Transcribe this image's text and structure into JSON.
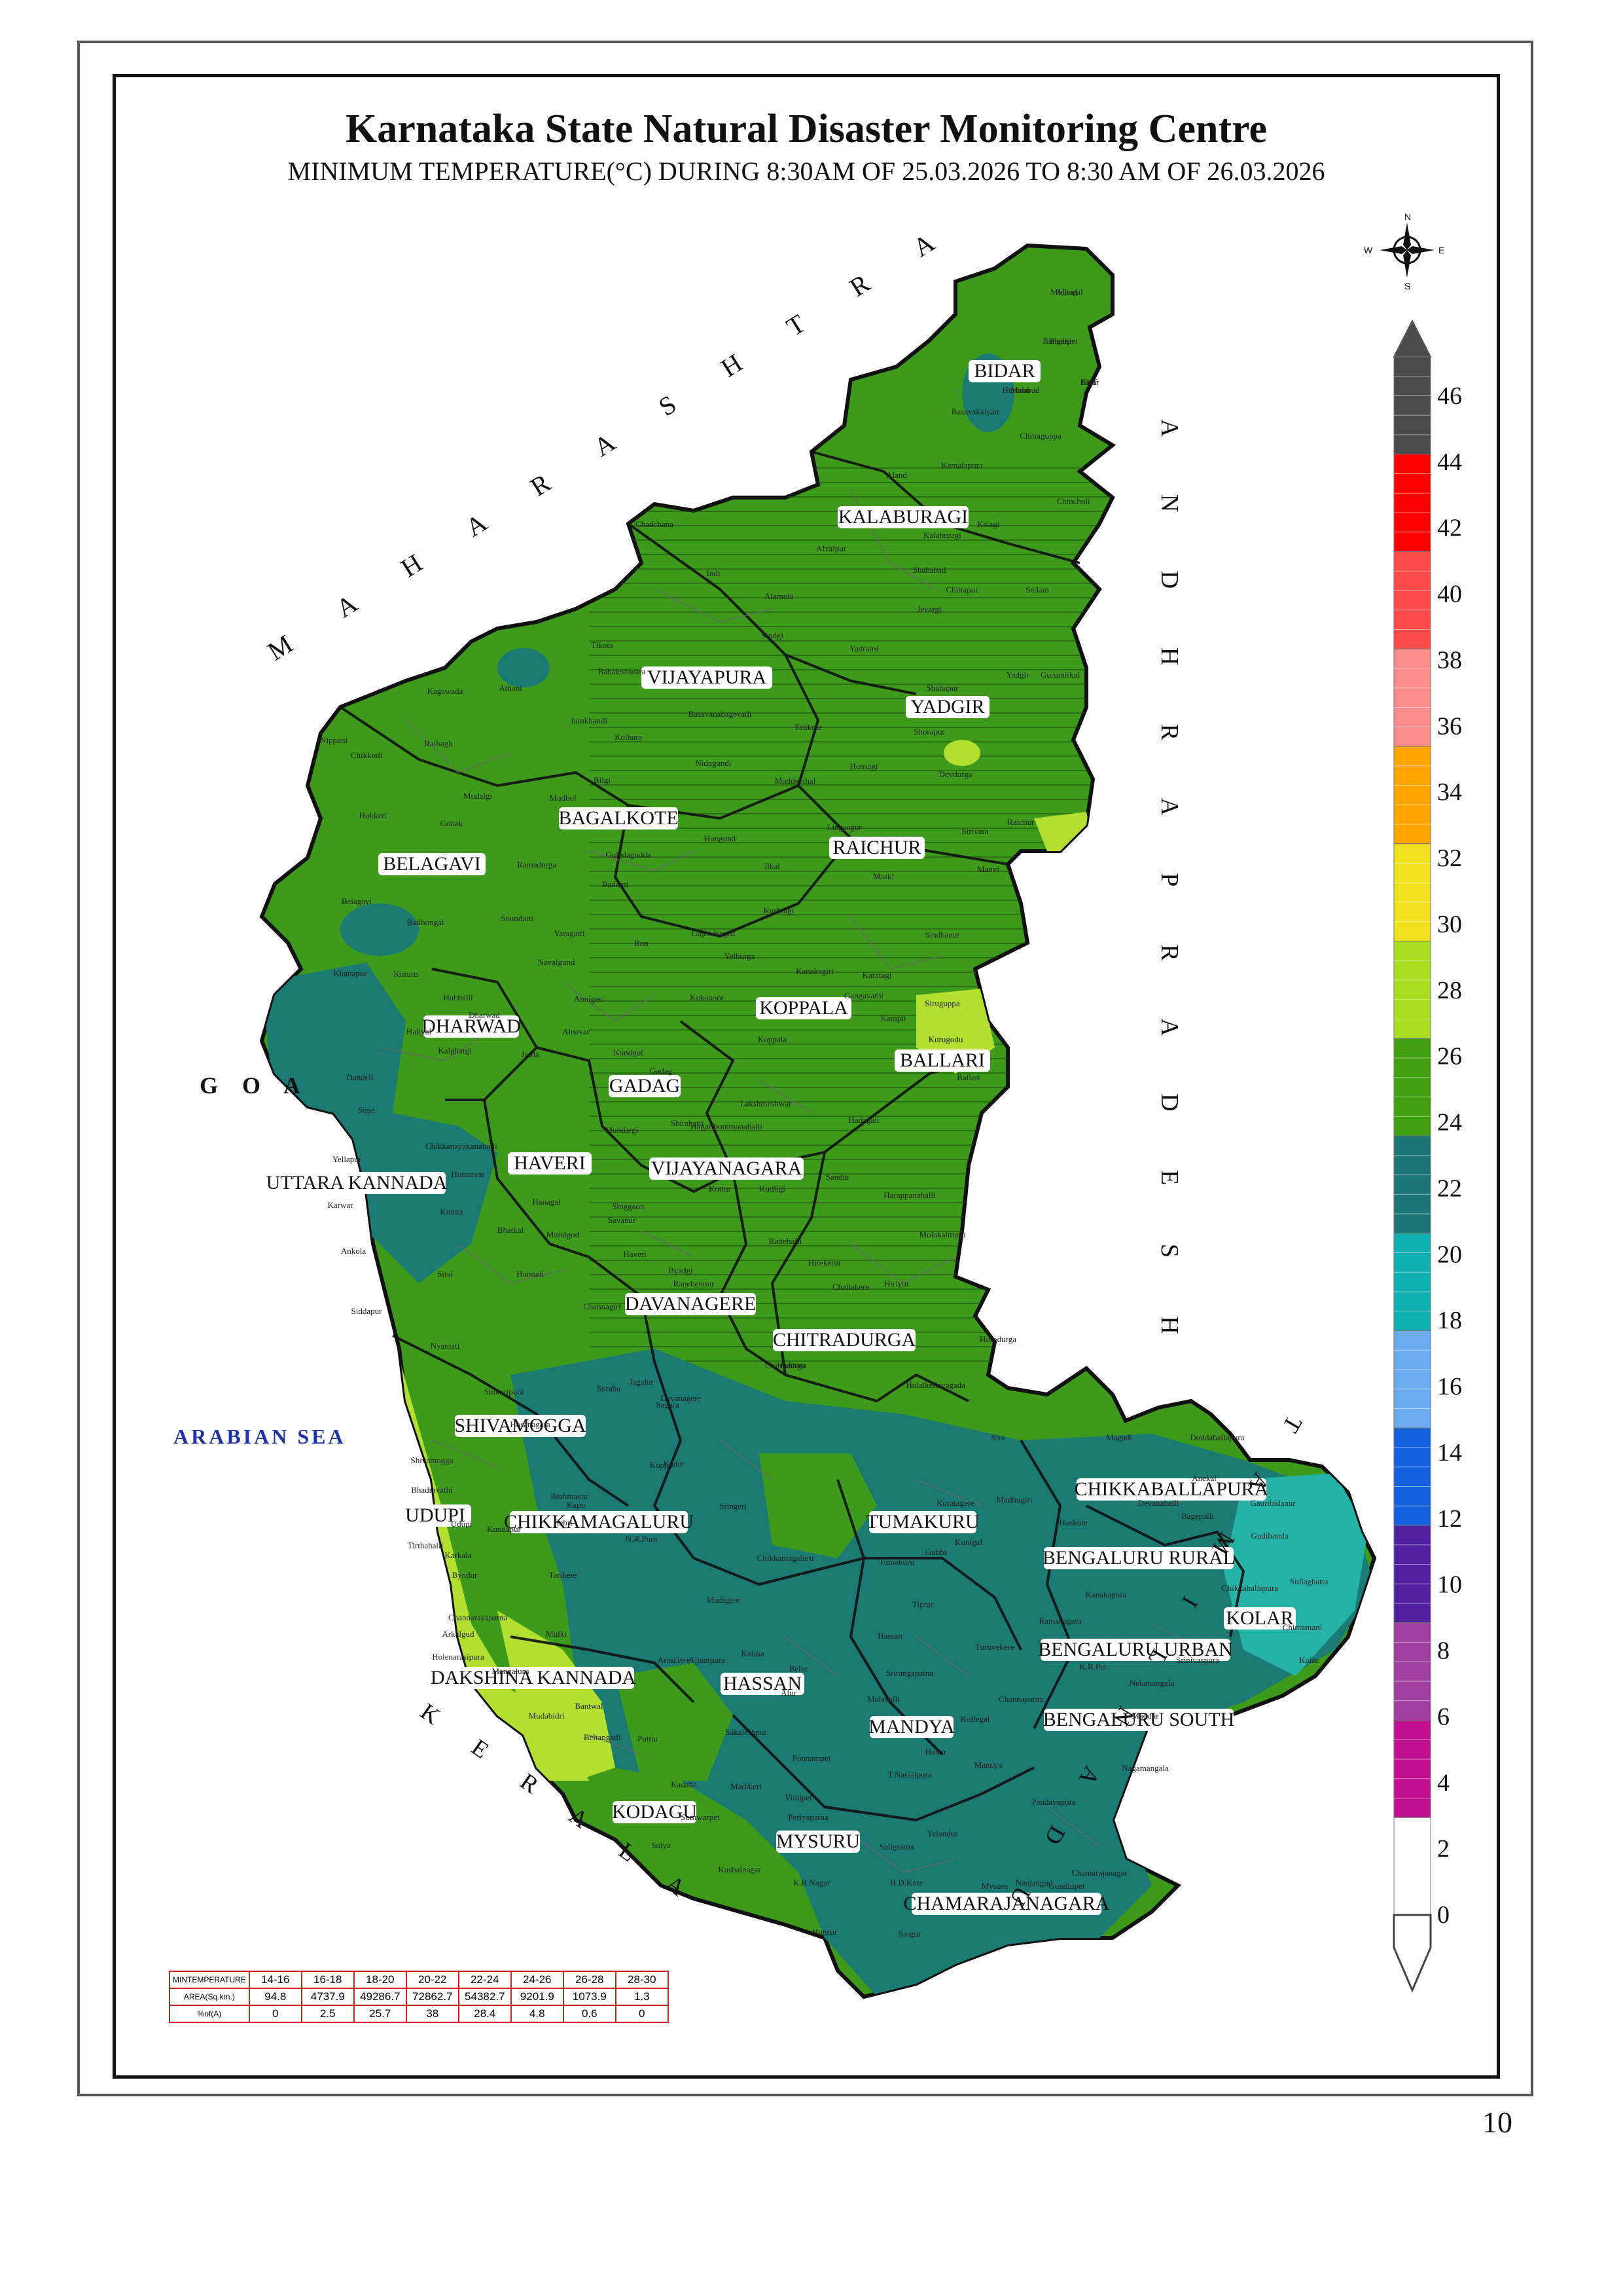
{
  "header": {
    "title": "Karnataka State Natural Disaster Monitoring Centre",
    "subtitle": "MINIMUM TEMPERATURE(°C) DURING 8:30AM OF 25.03.2026 TO 8:30 AM OF 26.03.2026"
  },
  "page_number": "10",
  "compass": {
    "n": "N",
    "s": "S",
    "e": "E",
    "w": "W"
  },
  "neighbour_labels": {
    "maharashtra": "M A H A R A S H T R A",
    "andhra": "A N D H R A   P R A D E S H",
    "tamil": "T A M I L   N A D U",
    "kerala": "K E R A L A",
    "goa": "G O A",
    "sea": "ARABIAN SEA"
  },
  "districts": [
    "BIDAR",
    "KALABURAGI",
    "VIJAYAPURA",
    "YADGIR",
    "BAGALKOTE",
    "RAICHUR",
    "BELAGAVI",
    "KOPPALA",
    "DHARWAD",
    "BALLARI",
    "GADAG",
    "HAVERI",
    "VIJAYANAGARA",
    "UTTARA KANNADA",
    "DAVANAGERE",
    "CHITRADURGA",
    "SHIVAMOGGA",
    "CHIKKABALLAPURA",
    "UDUPI",
    "CHIKKAMAGALURU",
    "TUMAKURU",
    "BENGALURU RURAL",
    "KOLAR",
    "BENGALURU URBAN",
    "DAKSHINA KANNADA",
    "HASSAN",
    "MANDYA",
    "BENGALURU SOUTH",
    "KODAGU",
    "MYSURU",
    "CHAMARAJANAGARA"
  ],
  "taluks": [
    "Aurad",
    "Bhalki",
    "Humnabad",
    "Bidar",
    "Basavakalyan",
    "Chittaguppa",
    "Kamalapura",
    "Aland",
    "Chincholi",
    "Kalaburagi",
    "Kalagi",
    "Afzalpur",
    "Shahabad",
    "Chittapur",
    "Sedam",
    "Jevargi",
    "Indi",
    "Alamela",
    "Sindgi",
    "Yadrami",
    "Chadchana",
    "Tikota",
    "Babaleshwara",
    "Basavanabagevadi",
    "Kolhara",
    "Talikote",
    "Shahapur",
    "Yadgir",
    "Gurumitkal",
    "Shorapur",
    "Hunsagi",
    "Devdurga",
    "Muddebihal",
    "Nidagundi",
    "Jamkhandi",
    "Athani",
    "Kagawada",
    "Raibagh",
    "Nippani",
    "Chikkodi",
    "Mudalgi",
    "Mudhol",
    "Bilgi",
    "Hukkeri",
    "Gokak",
    "Ramadurga",
    "Badami",
    "Guledagudda",
    "Hungund",
    "Ilkal",
    "Lingsugur",
    "Sirivara",
    "Manvi",
    "Maski",
    "Raichur",
    "Kushtagi",
    "Sindhanur",
    "Belagavi",
    "Bailhongal",
    "Soundatti",
    "Yaragatti",
    "Ron",
    "Gajendragad",
    "Yelburga",
    "Kanakagiri",
    "Karatagi",
    "Siruguppa",
    "Kampli",
    "Kurugodu",
    "Ballari",
    "Kukanoor",
    "Koppala",
    "Gangavathi",
    "Khanapur",
    "Kitturu",
    "Navalgund",
    "Annigeri",
    "Hubballi",
    "Dharwad",
    "Alnavar",
    "Kalghatgi",
    "Haliyal",
    "Dandeli",
    "Supa",
    "Joida",
    "Kundgol",
    "Gadag",
    "Mundargi",
    "Shirahatti",
    "Lakshmeshwar",
    "Hagaribommanahalli",
    "Hadagali",
    "Sandur",
    "Kudligi",
    "Kottur",
    "Harappanahalli",
    "Molakalmuru",
    "Hiriyur",
    "Challakere",
    "Chitradurga",
    "Holalkere",
    "Hosadurga",
    "Pavagada",
    "Sira",
    "Madhugiri",
    "Koratagere",
    "Gubbi",
    "Tumakuru",
    "Tiptur",
    "Turuvekere",
    "Kunigal",
    "Chikkanayakanahalli",
    "Yellapur",
    "Karwar",
    "Ankola",
    "Kumta",
    "Sirsi",
    "Siddapur",
    "Honnavar",
    "Bhatkal",
    "Mundgod",
    "Hanagal",
    "Savanur",
    "Shiggaon",
    "Haveri",
    "Byadgi",
    "Ranebennur",
    "Hirekerur",
    "Rattehalli",
    "Harihara",
    "Davanagere",
    "Jagalur",
    "Channagiri",
    "Honnali",
    "Nyamati",
    "Shikaripura",
    "Soraba",
    "Sagara",
    "Hosanagara",
    "Shivamogga",
    "Bhadravathi",
    "Tirthahalli",
    "Byndur",
    "Kundapur",
    "Udupi",
    "Karkala",
    "Hebri",
    "Kapu",
    "Brahmavar",
    "Koppa",
    "Sringeri",
    "N.R.Pura",
    "Tarikere",
    "Kadur",
    "Chikkamagaluru",
    "Mudigere",
    "Kalasa",
    "Ajjampura",
    "Arasikere",
    "Belur",
    "Alur",
    "Sakaleshpur",
    "Hassan",
    "Holenarasipura",
    "Arkalgud",
    "Channarayapatna",
    "Mangaluru",
    "Mulki",
    "Mudabidri",
    "Bantwal",
    "Beltangadi",
    "Puttur",
    "Kadaba",
    "Sulya",
    "Somwarpet",
    "Kushalnagar",
    "Madikeri",
    "Virajpet",
    "Ponnampet",
    "Periyapatna",
    "K.R.Nagar",
    "Hunsur",
    "Saligrama",
    "H.D.Kote",
    "Sargur",
    "Mysuru",
    "Nanjangud",
    "Gundlupet",
    "Chamarajanagar",
    "Yelandur",
    "Hanur",
    "Kollegal",
    "T.Narasipura",
    "Pandavapura",
    "Mandya",
    "Srirangapatna",
    "Malavalli",
    "Maddur",
    "Nagamangala",
    "K.R.Pet",
    "Ramanagara",
    "Kanakapura",
    "Channapatna",
    "Magadi",
    "Nelamangala",
    "Doddaballapura",
    "Devanahalli",
    "Hoskote",
    "Anekal",
    "Bagepalli",
    "Gauribidanur",
    "Gudibanda",
    "Chikkaballapura",
    "Sidlaghatta",
    "Chintamani",
    "Srinivaspura",
    "Kolar",
    "Mulbagal",
    "Bangarpet",
    "Malur",
    "KGF"
  ],
  "legend": {
    "ticks": [
      "46",
      "44",
      "42",
      "40",
      "38",
      "36",
      "34",
      "32",
      "30",
      "28",
      "26",
      "24",
      "22",
      "20",
      "18",
      "16",
      "14",
      "12",
      "10",
      "8",
      "6",
      "4",
      "2",
      "0"
    ],
    "colors": [
      "#4b4b4b",
      "#ff0000",
      "#ff4a4a",
      "#ff8c8c",
      "#ffa500",
      "#f0e020",
      "#aadc20",
      "#40a010",
      "#1b7575",
      "#10b0b0",
      "#6aaaf0",
      "#1060e0",
      "#5020a0",
      "#a040a0",
      "#c01090"
    ]
  },
  "area_table": {
    "header": "MINTEMPERATURE",
    "row_labels": [
      "AREA(Sq.km.)",
      "%of(A)"
    ],
    "ranges": [
      "14-16",
      "16-18",
      "18-20",
      "20-22",
      "22-24",
      "24-26",
      "26-28",
      "28-30"
    ],
    "area": [
      "94.8",
      "4737.9",
      "49286.7",
      "72862.7",
      "54382.7",
      "9201.9",
      "1073.9",
      "1.3"
    ],
    "percent": [
      "0",
      "2.5",
      "25.7",
      "38",
      "28.4",
      "4.8",
      "0.6",
      "0"
    ]
  },
  "map_colors": {
    "main_green": "#3e9a1a",
    "teal": "#1b7a72",
    "light_teal": "#25b3a8",
    "lime": "#b3e030",
    "border": "#6a6a6a"
  }
}
